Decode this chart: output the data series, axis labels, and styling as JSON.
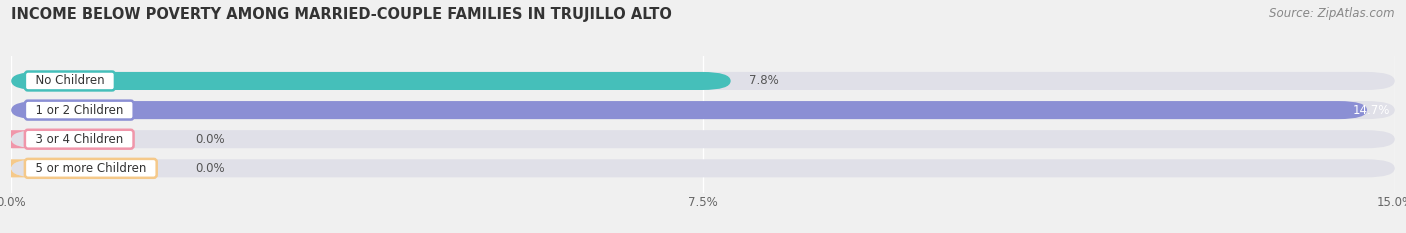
{
  "title": "INCOME BELOW POVERTY AMONG MARRIED-COUPLE FAMILIES IN TRUJILLO ALTO",
  "source": "Source: ZipAtlas.com",
  "categories": [
    "No Children",
    "1 or 2 Children",
    "3 or 4 Children",
    "5 or more Children"
  ],
  "values": [
    7.8,
    14.7,
    0.0,
    0.0
  ],
  "bar_colors": [
    "#45bfba",
    "#8b8fd4",
    "#f096aa",
    "#f5c98a"
  ],
  "xlim": [
    0,
    15.0
  ],
  "xticks": [
    0.0,
    7.5,
    15.0
  ],
  "xticklabels": [
    "0.0%",
    "7.5%",
    "15.0%"
  ],
  "background_color": "#f0f0f0",
  "bar_background_color": "#e0e0e8",
  "title_fontsize": 10.5,
  "source_fontsize": 8.5,
  "category_fontsize": 8.5,
  "value_label_fontsize": 8.5,
  "bar_height": 0.62,
  "bar_gap": 0.08
}
